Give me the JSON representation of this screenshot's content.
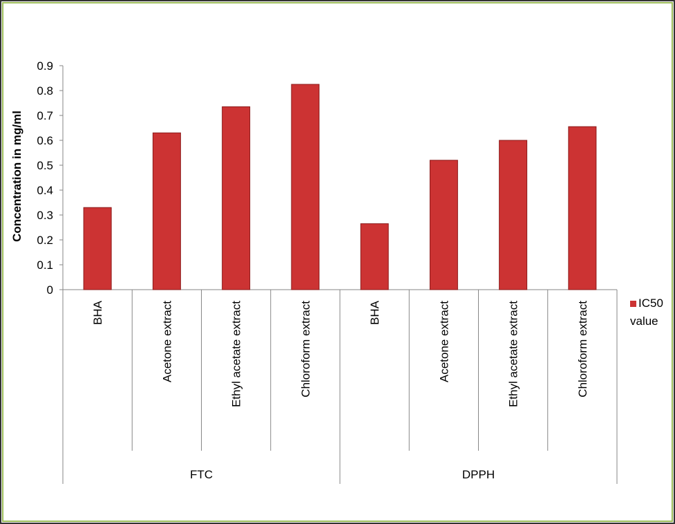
{
  "chart_data": {
    "type": "bar",
    "y_axis_label": "Concentration in mg/ml",
    "groups": [
      {
        "name": "FTC",
        "categories": [
          "BHA",
          "Acetone extract",
          "Ethyl acetate extract",
          "Chloroform extract"
        ]
      },
      {
        "name": "DPPH",
        "categories": [
          "BHA",
          "Acetone extract",
          "Ethyl acetate extract",
          "Chloroform extract"
        ]
      }
    ],
    "series": [
      {
        "name": "IC50 value",
        "color": "#cc3333",
        "values": [
          0.33,
          0.63,
          0.735,
          0.825,
          0.265,
          0.52,
          0.6,
          0.655
        ]
      }
    ],
    "ylim": [
      0,
      0.9
    ],
    "yticks": [
      0,
      0.1,
      0.2,
      0.3,
      0.4,
      0.5,
      0.6,
      0.7,
      0.8,
      0.9
    ],
    "legend": "right"
  }
}
